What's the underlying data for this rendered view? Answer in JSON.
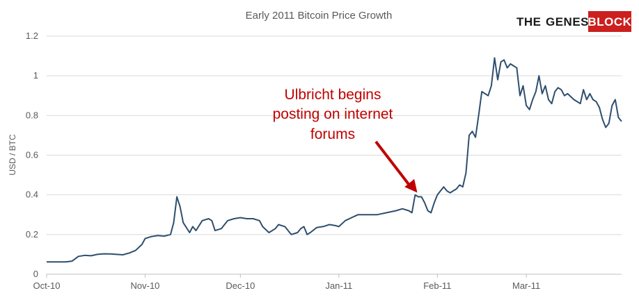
{
  "chart_data": {
    "type": "line",
    "title": "Early 2011 Bitcoin Price Growth",
    "xlabel": "",
    "ylabel": "USD / BTC",
    "ylim": [
      0,
      1.2
    ],
    "y_ticks": [
      "0",
      "0.2",
      "0.4",
      "0.6",
      "0.8",
      "1",
      "1.2"
    ],
    "x_ticks": [
      "Oct-10",
      "Nov-10",
      "Dec-10",
      "Jan-11",
      "Feb-11",
      "Mar-11"
    ],
    "x_start": "2010-10-01",
    "x_end": "2011-03-31",
    "grid": "horizontal",
    "line_color": "#2e4e6e",
    "series": [
      {
        "name": "",
        "points": [
          [
            "2010-10-01",
            0.062
          ],
          [
            "2010-10-03",
            0.062
          ],
          [
            "2010-10-05",
            0.062
          ],
          [
            "2010-10-07",
            0.062
          ],
          [
            "2010-10-09",
            0.066
          ],
          [
            "2010-10-11",
            0.09
          ],
          [
            "2010-10-13",
            0.095
          ],
          [
            "2010-10-15",
            0.093
          ],
          [
            "2010-10-17",
            0.1
          ],
          [
            "2010-10-19",
            0.103
          ],
          [
            "2010-10-21",
            0.102
          ],
          [
            "2010-10-23",
            0.1
          ],
          [
            "2010-10-25",
            0.098
          ],
          [
            "2010-10-27",
            0.107
          ],
          [
            "2010-10-29",
            0.12
          ],
          [
            "2010-10-31",
            0.15
          ],
          [
            "2010-11-01",
            0.18
          ],
          [
            "2010-11-03",
            0.19
          ],
          [
            "2010-11-05",
            0.195
          ],
          [
            "2010-11-07",
            0.192
          ],
          [
            "2010-11-09",
            0.2
          ],
          [
            "2010-11-10",
            0.26
          ],
          [
            "2010-11-11",
            0.39
          ],
          [
            "2010-11-12",
            0.34
          ],
          [
            "2010-11-13",
            0.26
          ],
          [
            "2010-11-15",
            0.21
          ],
          [
            "2010-11-16",
            0.24
          ],
          [
            "2010-11-17",
            0.22
          ],
          [
            "2010-11-19",
            0.27
          ],
          [
            "2010-11-21",
            0.28
          ],
          [
            "2010-11-22",
            0.27
          ],
          [
            "2010-11-23",
            0.22
          ],
          [
            "2010-11-25",
            0.23
          ],
          [
            "2010-11-27",
            0.27
          ],
          [
            "2010-11-29",
            0.28
          ],
          [
            "2010-12-01",
            0.285
          ],
          [
            "2010-12-03",
            0.28
          ],
          [
            "2010-12-05",
            0.28
          ],
          [
            "2010-12-07",
            0.27
          ],
          [
            "2010-12-08",
            0.24
          ],
          [
            "2010-12-10",
            0.21
          ],
          [
            "2010-12-12",
            0.23
          ],
          [
            "2010-12-13",
            0.25
          ],
          [
            "2010-12-15",
            0.24
          ],
          [
            "2010-12-17",
            0.2
          ],
          [
            "2010-12-19",
            0.21
          ],
          [
            "2010-12-20",
            0.23
          ],
          [
            "2010-12-21",
            0.24
          ],
          [
            "2010-12-22",
            0.2
          ],
          [
            "2010-12-23",
            0.21
          ],
          [
            "2010-12-25",
            0.235
          ],
          [
            "2010-12-27",
            0.24
          ],
          [
            "2010-12-29",
            0.25
          ],
          [
            "2010-12-31",
            0.245
          ],
          [
            "2011-01-01",
            0.24
          ],
          [
            "2011-01-03",
            0.27
          ],
          [
            "2011-01-05",
            0.285
          ],
          [
            "2011-01-07",
            0.3
          ],
          [
            "2011-01-10",
            0.3
          ],
          [
            "2011-01-13",
            0.3
          ],
          [
            "2011-01-16",
            0.31
          ],
          [
            "2011-01-19",
            0.32
          ],
          [
            "2011-01-21",
            0.33
          ],
          [
            "2011-01-23",
            0.32
          ],
          [
            "2011-01-24",
            0.31
          ],
          [
            "2011-01-25",
            0.4
          ],
          [
            "2011-01-26",
            0.39
          ],
          [
            "2011-01-27",
            0.39
          ],
          [
            "2011-01-28",
            0.36
          ],
          [
            "2011-01-29",
            0.32
          ],
          [
            "2011-01-30",
            0.31
          ],
          [
            "2011-01-31",
            0.36
          ],
          [
            "2011-02-01",
            0.4
          ],
          [
            "2011-02-02",
            0.42
          ],
          [
            "2011-02-03",
            0.44
          ],
          [
            "2011-02-04",
            0.42
          ],
          [
            "2011-02-05",
            0.41
          ],
          [
            "2011-02-06",
            0.42
          ],
          [
            "2011-02-07",
            0.43
          ],
          [
            "2011-02-08",
            0.45
          ],
          [
            "2011-02-09",
            0.44
          ],
          [
            "2011-02-10",
            0.51
          ],
          [
            "2011-02-11",
            0.7
          ],
          [
            "2011-02-12",
            0.72
          ],
          [
            "2011-02-13",
            0.69
          ],
          [
            "2011-02-14",
            0.8
          ],
          [
            "2011-02-15",
            0.92
          ],
          [
            "2011-02-16",
            0.91
          ],
          [
            "2011-02-17",
            0.9
          ],
          [
            "2011-02-18",
            0.95
          ],
          [
            "2011-02-19",
            1.09
          ],
          [
            "2011-02-20",
            0.98
          ],
          [
            "2011-02-21",
            1.07
          ],
          [
            "2011-02-22",
            1.08
          ],
          [
            "2011-02-23",
            1.04
          ],
          [
            "2011-02-24",
            1.06
          ],
          [
            "2011-02-25",
            1.05
          ],
          [
            "2011-02-26",
            1.04
          ],
          [
            "2011-02-27",
            0.9
          ],
          [
            "2011-02-28",
            0.95
          ],
          [
            "2011-03-01",
            0.85
          ],
          [
            "2011-03-02",
            0.83
          ],
          [
            "2011-03-03",
            0.88
          ],
          [
            "2011-03-04",
            0.92
          ],
          [
            "2011-03-05",
            1.0
          ],
          [
            "2011-03-06",
            0.91
          ],
          [
            "2011-03-07",
            0.95
          ],
          [
            "2011-03-08",
            0.88
          ],
          [
            "2011-03-09",
            0.86
          ],
          [
            "2011-03-10",
            0.92
          ],
          [
            "2011-03-11",
            0.94
          ],
          [
            "2011-03-12",
            0.93
          ],
          [
            "2011-03-13",
            0.9
          ],
          [
            "2011-03-14",
            0.91
          ],
          [
            "2011-03-16",
            0.88
          ],
          [
            "2011-03-18",
            0.86
          ],
          [
            "2011-03-19",
            0.93
          ],
          [
            "2011-03-20",
            0.88
          ],
          [
            "2011-03-21",
            0.91
          ],
          [
            "2011-03-22",
            0.88
          ],
          [
            "2011-03-23",
            0.87
          ],
          [
            "2011-03-24",
            0.84
          ],
          [
            "2011-03-25",
            0.78
          ],
          [
            "2011-03-26",
            0.74
          ],
          [
            "2011-03-27",
            0.76
          ],
          [
            "2011-03-28",
            0.85
          ],
          [
            "2011-03-29",
            0.88
          ],
          [
            "2011-03-30",
            0.79
          ],
          [
            "2011-03-31",
            0.77
          ]
        ]
      }
    ],
    "annotation": {
      "lines": [
        "Ulbricht begins",
        "posting on internet",
        "forums"
      ],
      "color": "#c00000",
      "arrow_target": "2011-01-27"
    }
  },
  "logo": {
    "word1": "THE",
    "word2": "GENESIS",
    "word3": "BLOCK",
    "accent": "#cc1f1f"
  }
}
